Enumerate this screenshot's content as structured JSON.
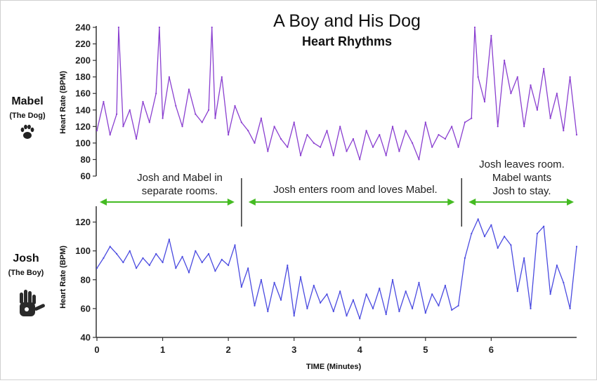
{
  "title": "A Boy and His Dog",
  "subtitle": "Heart Rhythms",
  "subjects": {
    "dog": {
      "name": "Mabel",
      "role": "(The Dog)",
      "icon": "paw-print-icon"
    },
    "boy": {
      "name": "Josh",
      "role": "(The Boy)",
      "icon": "hand-print-icon"
    }
  },
  "annotations": [
    {
      "lines": [
        "Josh and Mabel in",
        "separate rooms."
      ],
      "x_start": 0,
      "x_end": 2.2
    },
    {
      "lines": [
        "Josh enters room and loves Mabel."
      ],
      "x_start": 2.2,
      "x_end": 5.55
    },
    {
      "lines": [
        "Josh leaves room.",
        "Mabel wants",
        "Josh to stay."
      ],
      "x_start": 5.55,
      "x_end": 7.3
    }
  ],
  "colors": {
    "dog_line": "#8a3fd0",
    "boy_line": "#4a4ae0",
    "arrow": "#44bb22",
    "axis": "#333333"
  },
  "chart_data": [
    {
      "type": "line",
      "name": "Mabel",
      "ylabel": "Heart Rate (BPM)",
      "xlabel": "",
      "xlim": [
        0,
        7.3
      ],
      "ylim": [
        60,
        240
      ],
      "yticks": [
        60,
        80,
        100,
        120,
        140,
        160,
        180,
        200,
        220,
        240
      ],
      "x": [
        0,
        0.1,
        0.2,
        0.3,
        0.33,
        0.4,
        0.5,
        0.6,
        0.7,
        0.8,
        0.9,
        0.95,
        1.0,
        1.1,
        1.2,
        1.3,
        1.4,
        1.5,
        1.6,
        1.7,
        1.75,
        1.8,
        1.9,
        2.0,
        2.1,
        2.2,
        2.3,
        2.4,
        2.5,
        2.6,
        2.7,
        2.8,
        2.9,
        3.0,
        3.1,
        3.2,
        3.3,
        3.4,
        3.5,
        3.6,
        3.7,
        3.8,
        3.9,
        4.0,
        4.1,
        4.2,
        4.3,
        4.4,
        4.5,
        4.6,
        4.7,
        4.8,
        4.9,
        5.0,
        5.1,
        5.2,
        5.3,
        5.4,
        5.5,
        5.6,
        5.7,
        5.75,
        5.8,
        5.9,
        6.0,
        6.1,
        6.2,
        6.3,
        6.4,
        6.5,
        6.6,
        6.7,
        6.8,
        6.9,
        7.0,
        7.1,
        7.2,
        7.3
      ],
      "y": [
        115,
        150,
        110,
        135,
        240,
        120,
        140,
        105,
        150,
        125,
        160,
        240,
        130,
        180,
        145,
        120,
        165,
        135,
        125,
        140,
        240,
        130,
        180,
        110,
        145,
        125,
        115,
        100,
        130,
        90,
        120,
        105,
        95,
        125,
        85,
        110,
        100,
        95,
        115,
        85,
        120,
        90,
        105,
        80,
        115,
        95,
        110,
        85,
        120,
        90,
        115,
        100,
        80,
        125,
        95,
        110,
        105,
        120,
        95,
        125,
        130,
        240,
        180,
        150,
        230,
        120,
        200,
        160,
        180,
        120,
        170,
        140,
        190,
        130,
        160,
        115,
        180,
        110
      ]
    },
    {
      "type": "line",
      "name": "Josh",
      "ylabel": "Heart Rate (BPM)",
      "xlabel": "TIME (Minutes)",
      "xlim": [
        0,
        7.3
      ],
      "ylim": [
        40,
        130
      ],
      "yticks": [
        40,
        60,
        80,
        100,
        120
      ],
      "xticks": [
        0,
        1,
        2,
        3,
        4,
        5,
        6
      ],
      "x": [
        0,
        0.1,
        0.2,
        0.3,
        0.4,
        0.5,
        0.6,
        0.7,
        0.8,
        0.9,
        1.0,
        1.1,
        1.2,
        1.3,
        1.4,
        1.5,
        1.6,
        1.7,
        1.8,
        1.9,
        2.0,
        2.1,
        2.2,
        2.3,
        2.4,
        2.5,
        2.6,
        2.7,
        2.8,
        2.9,
        3.0,
        3.1,
        3.2,
        3.3,
        3.4,
        3.5,
        3.6,
        3.7,
        3.8,
        3.9,
        4.0,
        4.1,
        4.2,
        4.3,
        4.4,
        4.5,
        4.6,
        4.7,
        4.8,
        4.9,
        5.0,
        5.1,
        5.2,
        5.3,
        5.4,
        5.5,
        5.6,
        5.7,
        5.8,
        5.9,
        6.0,
        6.1,
        6.2,
        6.3,
        6.4,
        6.5,
        6.6,
        6.7,
        6.8,
        6.9,
        7.0,
        7.1,
        7.2,
        7.3
      ],
      "y": [
        88,
        95,
        103,
        98,
        92,
        100,
        88,
        95,
        90,
        98,
        92,
        108,
        88,
        96,
        85,
        100,
        92,
        98,
        86,
        94,
        90,
        104,
        75,
        88,
        62,
        80,
        58,
        78,
        66,
        90,
        55,
        82,
        60,
        76,
        64,
        70,
        58,
        72,
        55,
        66,
        53,
        70,
        60,
        74,
        56,
        80,
        58,
        72,
        60,
        78,
        57,
        70,
        62,
        76,
        59,
        62,
        95,
        112,
        122,
        110,
        118,
        102,
        110,
        104,
        72,
        95,
        60,
        112,
        117,
        70,
        90,
        78,
        60,
        103
      ]
    }
  ]
}
